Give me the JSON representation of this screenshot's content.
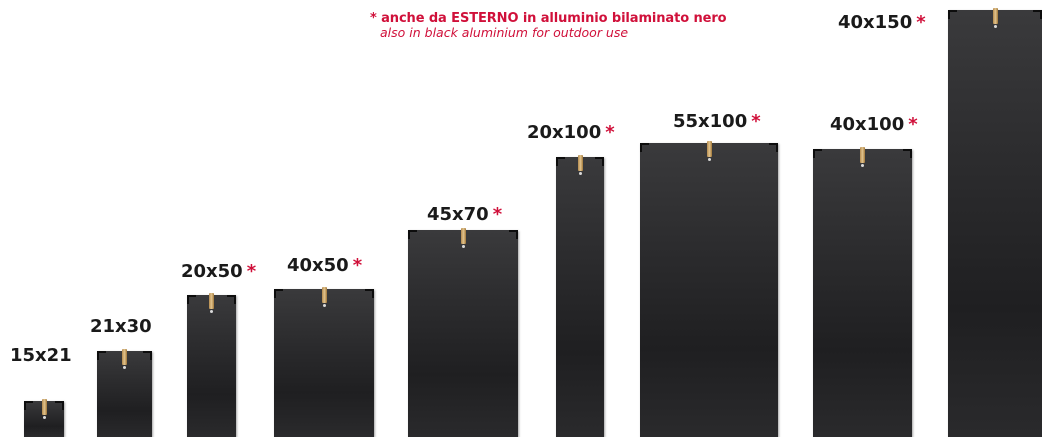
{
  "note": {
    "italian": "* anche da ESTERNO in alluminio bilaminato nero",
    "english": "also in black aluminium for outdoor use"
  },
  "star": "*",
  "panels": [
    {
      "size": "15x21",
      "outdoor": false
    },
    {
      "size": "21x30",
      "outdoor": false
    },
    {
      "size": "20x50",
      "outdoor": true
    },
    {
      "size": "40x50",
      "outdoor": true
    },
    {
      "size": "45x70",
      "outdoor": true
    },
    {
      "size": "20x100",
      "outdoor": true
    },
    {
      "size": "55x100",
      "outdoor": true
    },
    {
      "size": "40x100",
      "outdoor": true
    },
    {
      "size": "40x150",
      "outdoor": true
    }
  ]
}
